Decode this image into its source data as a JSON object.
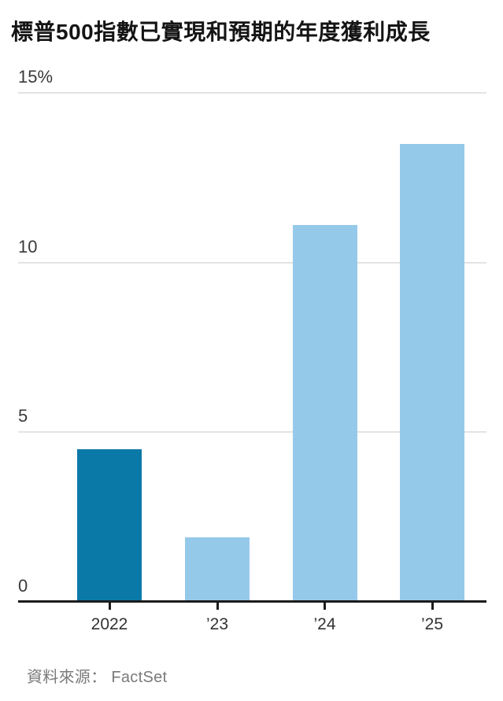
{
  "page": {
    "source_label": "資料來源：",
    "source_value": "FactSet"
  },
  "chart_data": {
    "type": "bar",
    "title": "標普500指數已實現和預期的年度獲利成長",
    "categories": [
      "2022",
      "’23",
      "’24",
      "’25"
    ],
    "values": [
      4.5,
      1.9,
      11.1,
      13.5
    ],
    "unit": "%",
    "ylabel": "",
    "xlabel": "",
    "ylim": [
      0,
      15
    ],
    "yticks": [
      0,
      5,
      10,
      15
    ],
    "ytick_labels": [
      "0",
      "5",
      "10",
      "15%"
    ],
    "grid": true,
    "legend": "none",
    "bar_colors": [
      "#0b79a8",
      "#95c9ea",
      "#95c9ea",
      "#95c9ea"
    ],
    "series_note": "2022 bar (realized) dark blue; ’23–’25 (estimates) light blue",
    "axis_color": "#1c1c1c",
    "gridline_color": "#e3e3e3",
    "label_color": "#333333",
    "source": "資料來源： FactSet"
  }
}
